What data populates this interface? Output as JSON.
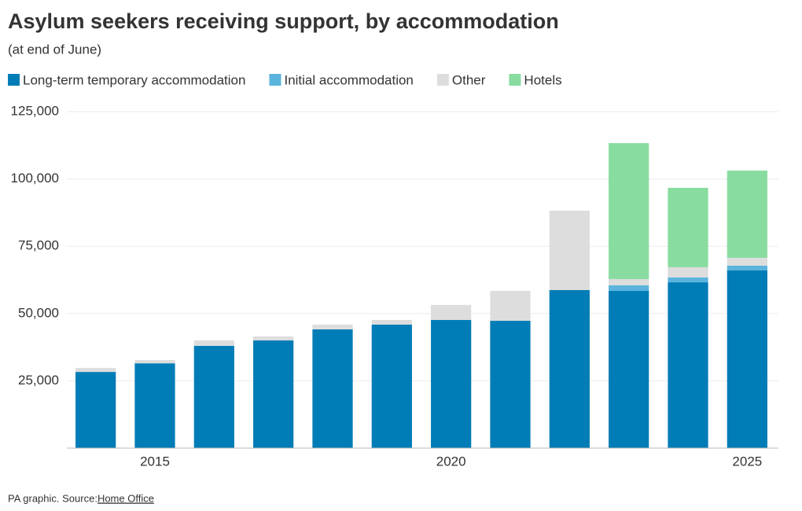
{
  "chart_data": {
    "type": "stacked-bar",
    "title": "Asylum seekers receiving support, by accommodation",
    "subtitle": "(at end of June)",
    "source_prefix": "PA graphic. Source: ",
    "source_link": "Home Office",
    "categories": [
      null,
      "2015",
      null,
      null,
      null,
      null,
      "2020",
      null,
      null,
      null,
      null,
      "2025"
    ],
    "series": [
      {
        "name": "Long-term temporary accommodation",
        "color": "#007cb6",
        "values": [
          28300,
          31500,
          38000,
          40000,
          44100,
          45900,
          47600,
          47300,
          58700,
          58400,
          61600,
          66000
        ]
      },
      {
        "name": "Initial accommodation",
        "color": "#5ab4dc",
        "values": [
          0,
          0,
          0,
          0,
          0,
          0,
          0,
          0,
          0,
          2100,
          1800,
          1800
        ]
      },
      {
        "name": "Other",
        "color": "#dddddd",
        "values": [
          1500,
          1200,
          2000,
          1500,
          1800,
          1700,
          5600,
          11100,
          29500,
          2300,
          3800,
          2900
        ]
      },
      {
        "name": "Hotels",
        "color": "#88dca0",
        "values": [
          0,
          0,
          0,
          0,
          0,
          0,
          0,
          0,
          0,
          50500,
          29500,
          32400
        ]
      }
    ],
    "ylim": [
      0,
      125000
    ],
    "yticks": [
      {
        "value": 25000,
        "label": "25,000"
      },
      {
        "value": 50000,
        "label": "50,000"
      },
      {
        "value": 75000,
        "label": "75,000"
      },
      {
        "value": 100000,
        "label": "100,000"
      },
      {
        "value": 125000,
        "label": "125,000"
      }
    ],
    "grid": true
  }
}
